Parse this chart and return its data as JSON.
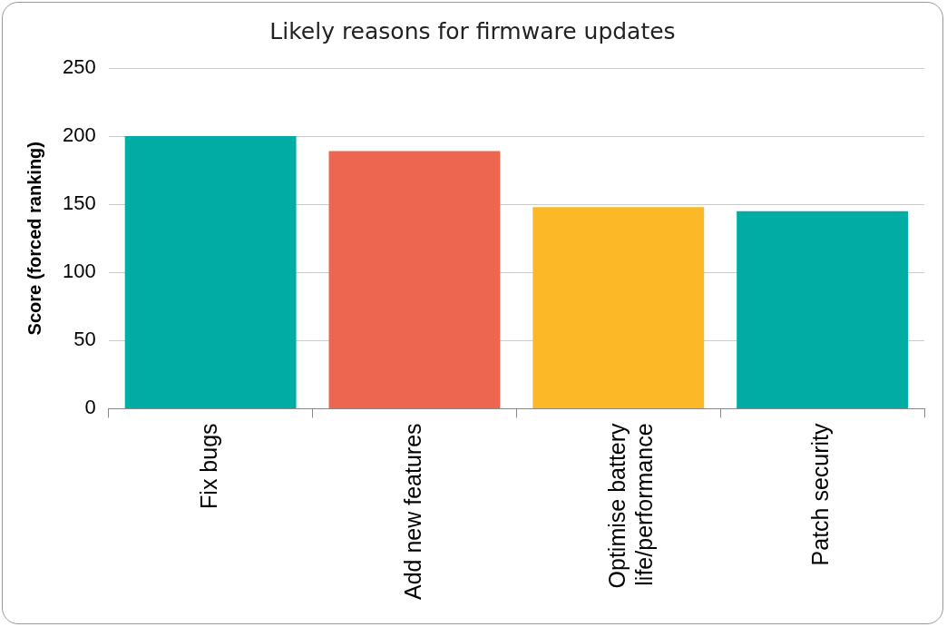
{
  "chart_data": {
    "type": "bar",
    "title": "Likely reasons for firmware updates",
    "ylabel": "Score (forced ranking)",
    "categories": [
      "Fix bugs",
      "Add new features",
      "Optimise battery life/performance",
      "Patch security"
    ],
    "values": [
      200,
      189,
      148,
      145
    ],
    "colors": [
      "#00ada4",
      "#ed6650",
      "#fdb827",
      "#00ada4"
    ],
    "ylim": [
      0,
      250
    ],
    "yticks": [
      0,
      50,
      100,
      150,
      200,
      250
    ],
    "grid": "y",
    "legend": false
  }
}
